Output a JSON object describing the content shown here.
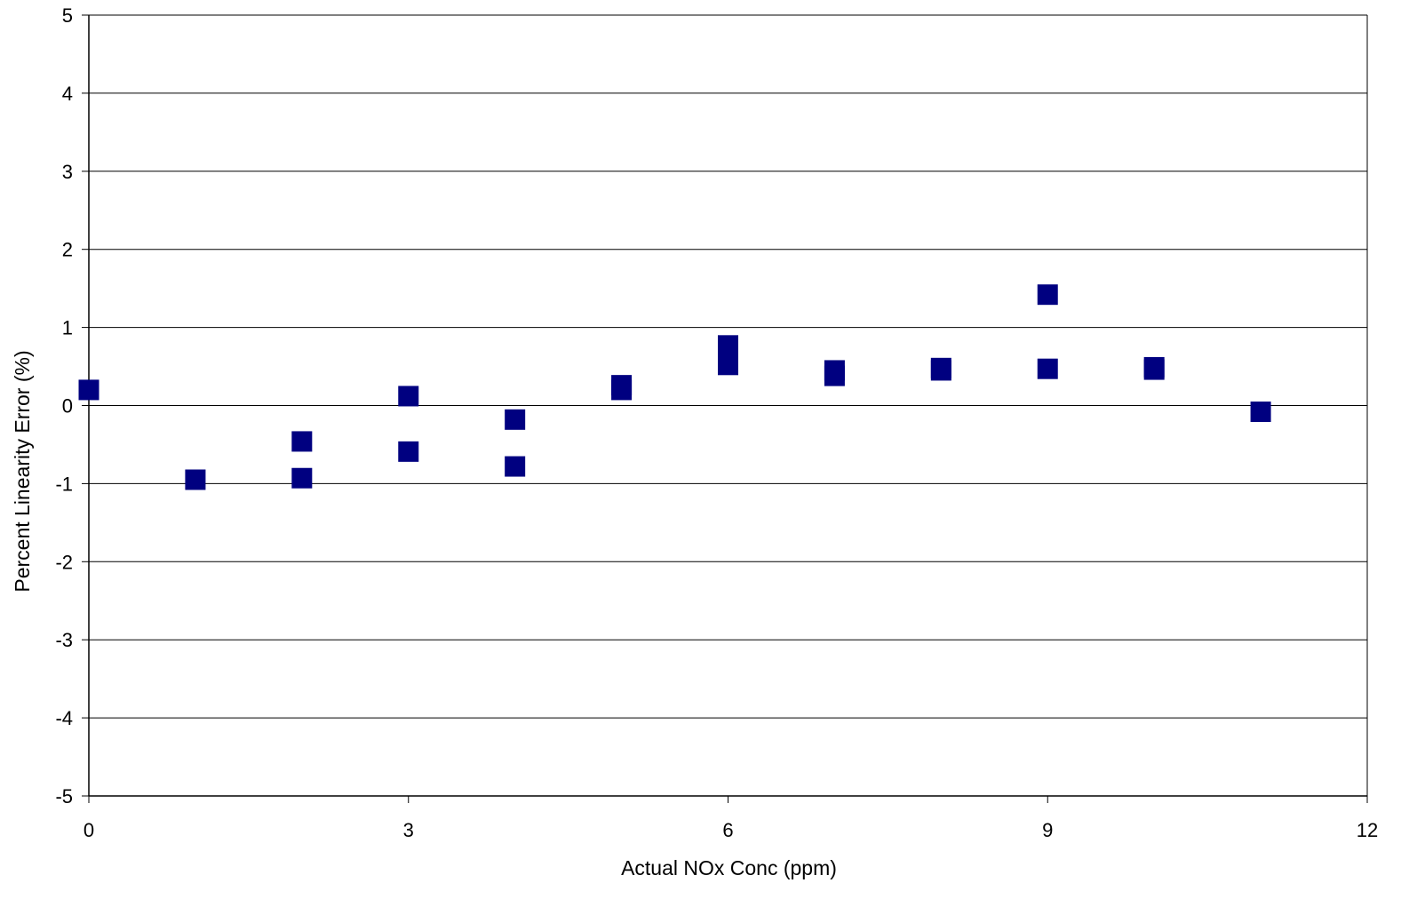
{
  "chart_data": {
    "type": "scatter",
    "title": "",
    "xlabel": "Actual NOx Conc (ppm)",
    "ylabel": "Percent Linearity Error (%)",
    "xlim": [
      0,
      12
    ],
    "ylim": [
      -5,
      5
    ],
    "x_ticks": [
      0,
      3,
      6,
      9,
      12
    ],
    "y_ticks": [
      5,
      4,
      3,
      2,
      1,
      0,
      -1,
      -2,
      -3,
      -4,
      -5
    ],
    "grid": "horizontal",
    "legend": "none",
    "marker": "square",
    "colors": {
      "marker": "#000080",
      "axis": "#000000",
      "grid": "#000000",
      "background": "#ffffff"
    },
    "series": [
      {
        "points": [
          {
            "x": 0,
            "y": 0.2
          },
          {
            "x": 1,
            "y": -0.95
          },
          {
            "x": 2,
            "y": -0.46
          },
          {
            "x": 2,
            "y": -0.93
          },
          {
            "x": 3,
            "y": 0.12
          },
          {
            "x": 3,
            "y": -0.59
          },
          {
            "x": 4,
            "y": -0.18
          },
          {
            "x": 4,
            "y": -0.78
          },
          {
            "x": 5,
            "y": 0.26
          },
          {
            "x": 5,
            "y": 0.2
          },
          {
            "x": 6,
            "y": 0.77
          },
          {
            "x": 6,
            "y": 0.52
          },
          {
            "x": 7,
            "y": 0.45
          },
          {
            "x": 7,
            "y": 0.38
          },
          {
            "x": 8,
            "y": 0.48
          },
          {
            "x": 8,
            "y": 0.45
          },
          {
            "x": 9,
            "y": 1.42
          },
          {
            "x": 9,
            "y": 0.47
          },
          {
            "x": 10,
            "y": 0.49
          },
          {
            "x": 10,
            "y": 0.46
          },
          {
            "x": 11,
            "y": -0.08
          }
        ]
      }
    ]
  }
}
